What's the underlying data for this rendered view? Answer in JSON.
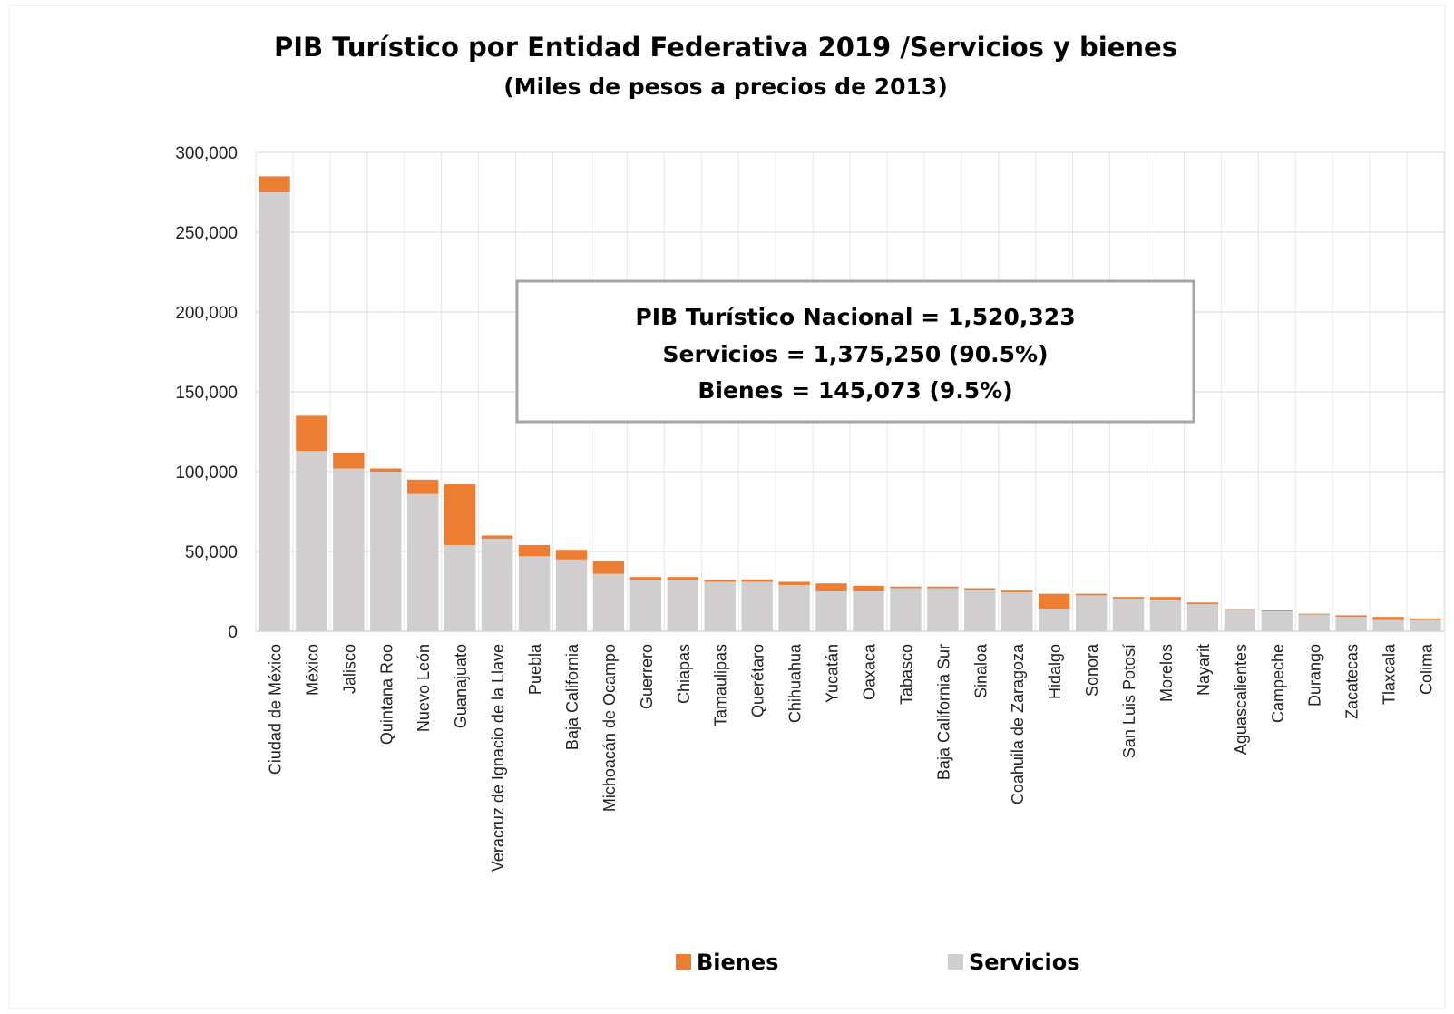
{
  "chart_data": {
    "type": "bar",
    "stacked": true,
    "title": "PIB Turístico por Entidad Federativa 2019 /Servicios y bienes",
    "subtitle": "(Miles de pesos a precios de 2013)",
    "xlabel": "",
    "ylabel": "",
    "ylim": [
      0,
      300000
    ],
    "yticks": [
      0,
      50000,
      100000,
      150000,
      200000,
      250000,
      300000
    ],
    "ytick_labels": [
      "0",
      "50,000",
      "100,000",
      "150,000",
      "200,000",
      "250,000",
      "300,000"
    ],
    "grid": true,
    "legend_position": "bottom",
    "categories": [
      "Ciudad de México",
      "México",
      "Jalisco",
      "Quintana Roo",
      "Nuevo León",
      "Guanajuato",
      "Veracruz de Ignacio de la Llave",
      "Puebla",
      "Baja California",
      "Michoacán de Ocampo",
      "Guerrero",
      "Chiapas",
      "Tamaulipas",
      "Querétaro",
      "Chihuahua",
      "Yucatán",
      "Oaxaca",
      "Tabasco",
      "Baja California Sur",
      "Sinaloa",
      "Coahuila de Zaragoza",
      "Hidalgo",
      "Sonora",
      "San Luis Potosí",
      "Morelos",
      "Nayarit",
      "Aguascalientes",
      "Campeche",
      "Durango",
      "Zacatecas",
      "Tlaxcala",
      "Colima"
    ],
    "series": [
      {
        "name": "Servicios",
        "color": "#d0cece",
        "values": [
          275000,
          113000,
          102000,
          100000,
          86000,
          54000,
          58000,
          47000,
          45000,
          36000,
          32000,
          32000,
          31000,
          31000,
          29000,
          25000,
          25000,
          27000,
          27000,
          26000,
          24500,
          14000,
          22500,
          20500,
          19500,
          17000,
          13500,
          12500,
          10500,
          9000,
          7000,
          7000
        ]
      },
      {
        "name": "Bienes",
        "color": "#ed7d31",
        "values": [
          10000,
          22000,
          10000,
          2000,
          9000,
          38000,
          2000,
          7000,
          6000,
          8000,
          2000,
          2000,
          1000,
          1500,
          2000,
          5000,
          3500,
          1000,
          1000,
          1000,
          1000,
          9500,
          1000,
          1000,
          2000,
          1000,
          500,
          500,
          500,
          1000,
          2000,
          1000
        ]
      }
    ],
    "annotation": {
      "lines": [
        "PIB Turístico  Nacional = 1,520,323",
        "Servicios = 1,375,250  (90.5%)",
        "Bienes  = 145,073  (9.5%)"
      ]
    },
    "legend": {
      "items": [
        {
          "name": "Bienes",
          "color": "#ed7d31"
        },
        {
          "name": "Servicios",
          "color": "#d0cece"
        }
      ]
    }
  }
}
